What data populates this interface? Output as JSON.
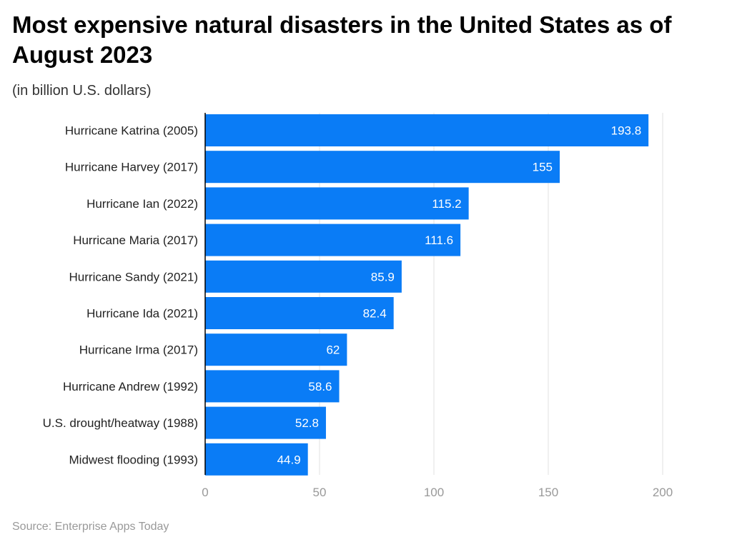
{
  "chart_data": {
    "type": "bar",
    "orientation": "horizontal",
    "title": "Most expensive natural disasters in the United States as of August 2023",
    "subtitle": "(in billion U.S. dollars)",
    "source": "Source: Enterprise Apps Today",
    "categories": [
      "Hurricane Katrina (2005)",
      "Hurricane Harvey (2017)",
      "Hurricane Ian (2022)",
      "Hurricane Maria (2017)",
      "Hurricane Sandy (2021)",
      "Hurricane Ida (2021)",
      "Hurricane Irma (2017)",
      "Hurricane Andrew (1992)",
      "U.S. drought/heatway (1988)",
      "Midwest flooding (1993)"
    ],
    "values": [
      193.8,
      155,
      115.2,
      111.6,
      85.9,
      82.4,
      62,
      58.6,
      52.8,
      44.9
    ],
    "data_labels": [
      "193.8",
      "155",
      "115.2",
      "111.6",
      "85.9",
      "82.4",
      "62",
      "58.6",
      "52.8",
      "44.9"
    ],
    "xlim": [
      0,
      200
    ],
    "xticks": [
      "0",
      "50",
      "100",
      "150",
      "200"
    ],
    "grid": true,
    "bar_color": "#0a7cf6"
  }
}
